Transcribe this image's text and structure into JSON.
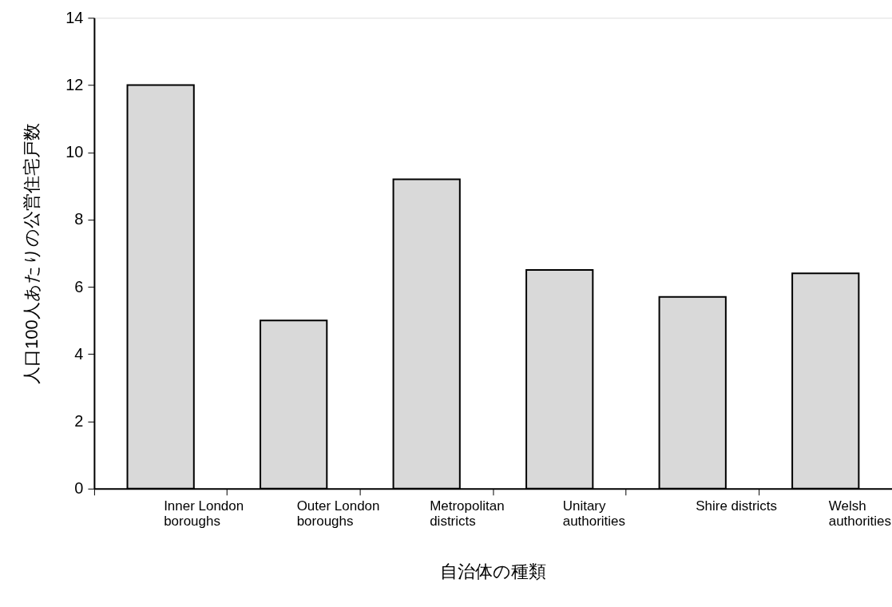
{
  "chart_data": {
    "type": "bar",
    "xlabel": "自治体の種類",
    "ylabel": "人口100人あたりの公営住宅戸数",
    "categories": [
      "Inner London boroughs",
      "Outer London boroughs",
      "Metropolitan districts",
      "Unitary authorities",
      "Shire districts",
      "Welsh authorities"
    ],
    "values": [
      12.0,
      5.0,
      9.2,
      6.5,
      5.7,
      6.4
    ],
    "color": "#d9d9d9",
    "ylim": [
      0,
      14
    ],
    "yticks": [
      0,
      2,
      4,
      6,
      8,
      10,
      12,
      14
    ],
    "grid": false
  }
}
